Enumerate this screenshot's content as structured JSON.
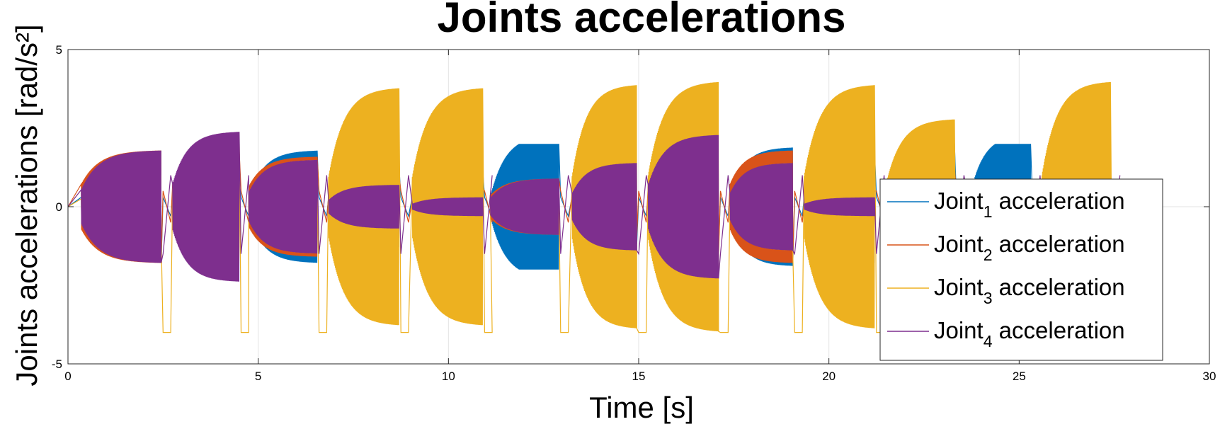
{
  "chart_data": {
    "type": "line",
    "title": "Joints accelerations",
    "xlabel": "Time [s]",
    "ylabel": "Joints accelerations [rad/s²]",
    "xlim": [
      0,
      30
    ],
    "ylim": [
      -5,
      5
    ],
    "x_ticks": [
      "0",
      "5",
      "10",
      "15",
      "20",
      "25",
      "30"
    ],
    "y_ticks": [
      "-5",
      "0",
      "5"
    ],
    "grid": true,
    "legend_position": "right",
    "segments": [
      {
        "t_start": 0.35,
        "t_end": 2.45,
        "p": [
          -1.5,
          1.8,
          1.0,
          1.8
        ],
        "phase": "free"
      },
      {
        "t_start": 2.75,
        "t_end": 4.5,
        "p": [
          0.5,
          -1.8,
          -2.3,
          2.4
        ],
        "phase": "free"
      },
      {
        "t_start": 4.75,
        "t_end": 6.55,
        "p": [
          1.5,
          1.6,
          -1.5,
          -1.5
        ],
        "phase": "free"
      },
      {
        "t_start": 6.85,
        "t_end": 8.7,
        "p": [
          -1.0,
          -1.0,
          3.8,
          0.7
        ],
        "phase": "free"
      },
      {
        "t_start": 9.05,
        "t_end": 10.9,
        "p": [
          0.9,
          -0.6,
          3.8,
          0.3
        ],
        "phase": "free"
      },
      {
        "t_start": 11.1,
        "t_end": 12.9,
        "p": [
          -2.0,
          0.9,
          0.5,
          0.9
        ],
        "phase": "free"
      },
      {
        "t_start": 13.25,
        "t_end": 14.95,
        "p": [
          0.9,
          -1.0,
          3.9,
          1.4
        ],
        "phase": "free"
      },
      {
        "t_start": 15.25,
        "t_end": 17.1,
        "p": [
          -1.0,
          1.6,
          4.0,
          2.3
        ],
        "phase": "free"
      },
      {
        "t_start": 17.4,
        "t_end": 19.05,
        "p": [
          1.6,
          1.8,
          1.4,
          -1.4
        ],
        "phase": "free"
      },
      {
        "t_start": 19.35,
        "t_end": 21.2,
        "p": [
          -1.5,
          -0.5,
          3.9,
          0.3
        ],
        "phase": "free"
      },
      {
        "t_start": 21.5,
        "t_end": 23.3,
        "p": [
          2.0,
          -1.3,
          2.8,
          0.3
        ],
        "phase": "free"
      },
      {
        "t_start": 23.7,
        "t_end": 25.3,
        "p": [
          2.0,
          0.2,
          0.0,
          0.0
        ],
        "phase": "free"
      },
      {
        "t_start": 25.6,
        "t_end": 27.4,
        "p": [
          0.2,
          0.0,
          4.0,
          0.0
        ],
        "phase": "free"
      }
    ],
    "series": [
      {
        "name": "Joint₁ acceleration",
        "label_main": "Joint",
        "label_sub": "1",
        "label_rest": " acceleration",
        "color": "#0072BD"
      },
      {
        "name": "Joint₂ acceleration",
        "label_main": "Joint",
        "label_sub": "2",
        "label_rest": " acceleration",
        "color": "#D95319"
      },
      {
        "name": "Joint₃ acceleration",
        "label_main": "Joint",
        "label_sub": "3",
        "label_rest": " acceleration",
        "color": "#EDB120"
      },
      {
        "name": "Joint₄ acceleration",
        "label_main": "Joint",
        "label_sub": "4",
        "label_rest": " acceleration",
        "color": "#7E2F8E"
      }
    ]
  }
}
